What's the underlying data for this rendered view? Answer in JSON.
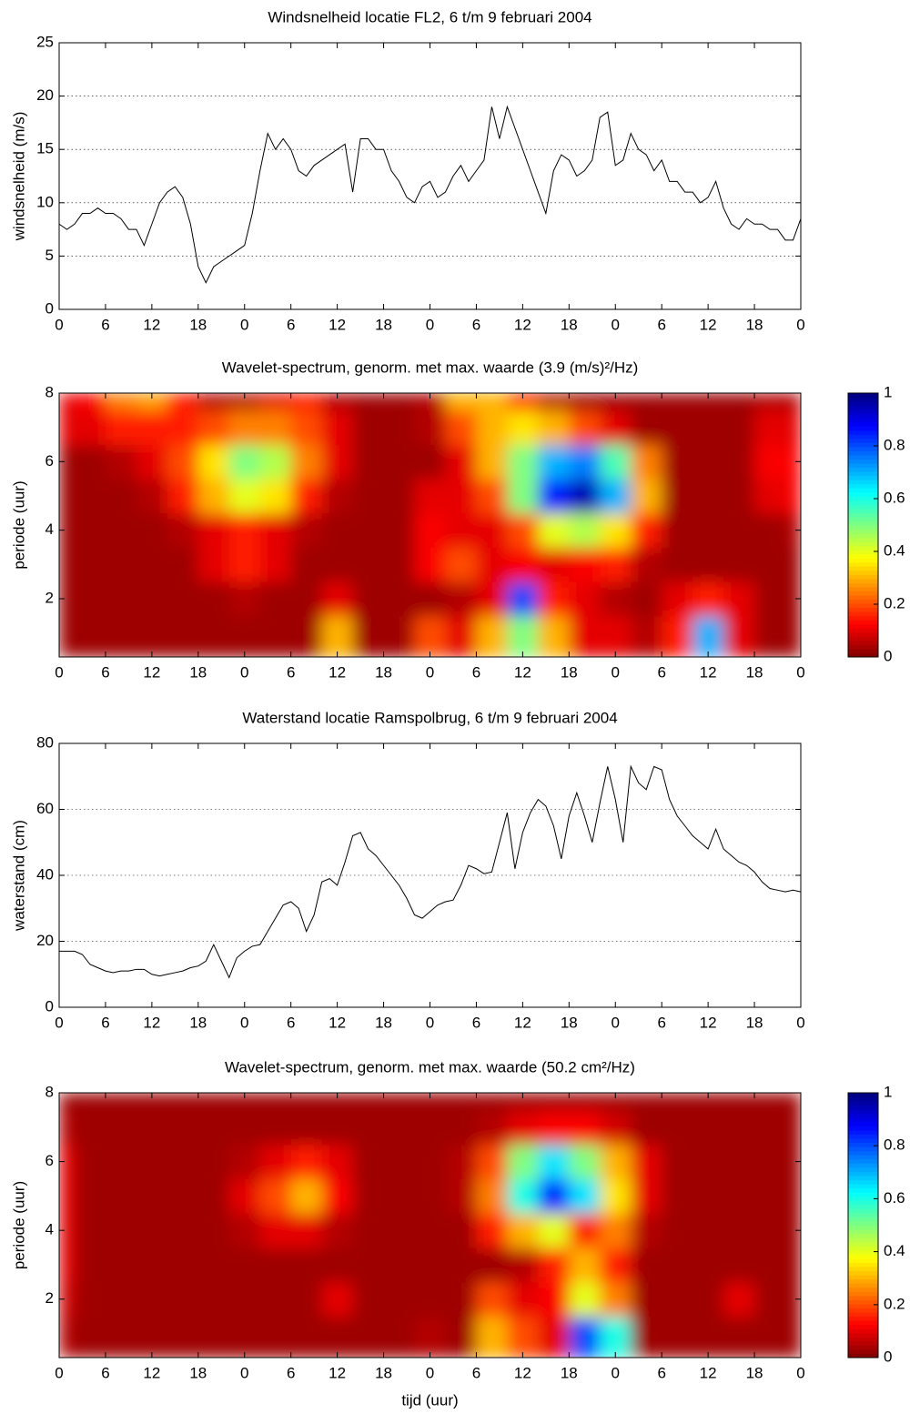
{
  "chart_data": [
    {
      "type": "line",
      "title": "Windsnelheid locatie FL2, 6 t/m 9 februari 2004",
      "ylabel": "windsnelheid (m/s)",
      "x": [
        0,
        1,
        2,
        3,
        4,
        5,
        6,
        7,
        8,
        9,
        10,
        11,
        12,
        13,
        14,
        15,
        16,
        17,
        18,
        19,
        20,
        21,
        22,
        23,
        24,
        25,
        26,
        27,
        28,
        29,
        30,
        31,
        32,
        33,
        34,
        35,
        36,
        37,
        38,
        39,
        40,
        41,
        42,
        43,
        44,
        45,
        46,
        47,
        48,
        49,
        50,
        51,
        52,
        53,
        54,
        55,
        56,
        57,
        58,
        59,
        60,
        61,
        62,
        63,
        64,
        65,
        66,
        67,
        68,
        69,
        70,
        71,
        72,
        73,
        74,
        75,
        76,
        77,
        78,
        79,
        80,
        81,
        82,
        83,
        84,
        85,
        86,
        87,
        88,
        89,
        90,
        91,
        92,
        93,
        94,
        95,
        96
      ],
      "series": [
        {
          "color": "#000000",
          "values": [
            8,
            7.5,
            8,
            9,
            9,
            9.5,
            9,
            9,
            8.5,
            7.5,
            7.5,
            6,
            8,
            10,
            11,
            11.5,
            10.5,
            8,
            4,
            2.5,
            4,
            4.5,
            5,
            5.5,
            6,
            9,
            13,
            16.5,
            15,
            16,
            15,
            13,
            12.5,
            13.5,
            14,
            14.5,
            15,
            15.5,
            11,
            16,
            16,
            15,
            15,
            13,
            12,
            10.5,
            10,
            11.5,
            12,
            10.5,
            11,
            12.5,
            13.5,
            12,
            13,
            14,
            19,
            16,
            19,
            17,
            15,
            13,
            11,
            9,
            13,
            14.5,
            14,
            12.5,
            13,
            14,
            18,
            18.5,
            13.5,
            14,
            16.5,
            15,
            14.5,
            13,
            14,
            12,
            12,
            11,
            11,
            10,
            10.5,
            12,
            9.5,
            8,
            7.5,
            8.5,
            8,
            8,
            7.5,
            7.5,
            6.5,
            6.5,
            8.5
          ]
        }
      ],
      "xlim": [
        0,
        96
      ],
      "xticks": [
        0,
        6,
        12,
        18,
        {
          "value": 24,
          "label": "0"
        },
        {
          "value": 30,
          "label": "6"
        },
        {
          "value": 36,
          "label": "12"
        },
        {
          "value": 42,
          "label": "18"
        },
        {
          "value": 48,
          "label": "0"
        },
        {
          "value": 54,
          "label": "6"
        },
        {
          "value": 60,
          "label": "12"
        },
        {
          "value": 66,
          "label": "18"
        },
        {
          "value": 72,
          "label": "0"
        },
        {
          "value": 78,
          "label": "6"
        },
        {
          "value": 84,
          "label": "12"
        },
        {
          "value": 90,
          "label": "18"
        },
        {
          "value": 96,
          "label": "0"
        }
      ],
      "ylim": [
        0,
        25
      ],
      "yticks": [
        0,
        5,
        10,
        15,
        20,
        25
      ],
      "grid": true
    },
    {
      "type": "contour",
      "title": "Wavelet-spectrum, genorm. met max. waarde (3.9 (m/s)²/Hz)",
      "ylabel": "periode (uur)",
      "colormap": "jet-reversed",
      "x": [
        0,
        4,
        8,
        12,
        16,
        20,
        24,
        28,
        32,
        36,
        40,
        44,
        48,
        52,
        56,
        60,
        64,
        68,
        72,
        76,
        80,
        84,
        88,
        92,
        96
      ],
      "y": [
        1,
        2,
        3,
        4,
        5,
        6,
        7,
        8
      ],
      "z": [
        [
          0.03,
          0.03,
          0.03,
          0.03,
          0.03,
          0.03,
          0.03,
          0.03,
          0.03,
          0.3,
          0.03,
          0.03,
          0.2,
          0.1,
          0.3,
          0.5,
          0.3,
          0.1,
          0.1,
          0.05,
          0.15,
          0.7,
          0.1,
          0.03,
          0.03
        ],
        [
          0.03,
          0.03,
          0.03,
          0.03,
          0.03,
          0.03,
          0.05,
          0.03,
          0.03,
          0.1,
          0.03,
          0.03,
          0.03,
          0.05,
          0.1,
          0.8,
          0.15,
          0.1,
          0.05,
          0.03,
          0.1,
          0.15,
          0.1,
          0.03,
          0.03
        ],
        [
          0.03,
          0.03,
          0.03,
          0.03,
          0.03,
          0.1,
          0.15,
          0.1,
          0.03,
          0.03,
          0.03,
          0.03,
          0.12,
          0.2,
          0.1,
          0.12,
          0.1,
          0.12,
          0.15,
          0.05,
          0.03,
          0.03,
          0.03,
          0.03,
          0.03
        ],
        [
          0.03,
          0.03,
          0.03,
          0.03,
          0.05,
          0.1,
          0.15,
          0.1,
          0.05,
          0.03,
          0.03,
          0.03,
          0.12,
          0.1,
          0.1,
          0.2,
          0.4,
          0.45,
          0.35,
          0.15,
          0.03,
          0.03,
          0.03,
          0.03,
          0.05
        ],
        [
          0.03,
          0.03,
          0.03,
          0.05,
          0.15,
          0.3,
          0.4,
          0.35,
          0.15,
          0.05,
          0.03,
          0.03,
          0.1,
          0.1,
          0.2,
          0.5,
          0.85,
          0.95,
          0.7,
          0.3,
          0.03,
          0.03,
          0.03,
          0.1,
          0.12
        ],
        [
          0.03,
          0.03,
          0.05,
          0.1,
          0.2,
          0.35,
          0.5,
          0.45,
          0.25,
          0.1,
          0.03,
          0.03,
          0.03,
          0.1,
          0.3,
          0.5,
          0.7,
          0.75,
          0.55,
          0.25,
          0.03,
          0.03,
          0.03,
          0.12,
          0.12
        ],
        [
          0.1,
          0.1,
          0.15,
          0.15,
          0.15,
          0.2,
          0.25,
          0.25,
          0.2,
          0.1,
          0.03,
          0.03,
          0.05,
          0.2,
          0.3,
          0.35,
          0.3,
          0.2,
          0.1,
          0.03,
          0.03,
          0.03,
          0.03,
          0.1,
          0.1
        ],
        [
          0.1,
          0.12,
          0.25,
          0.28,
          0.15,
          0.05,
          0.05,
          0.1,
          0.15,
          0.05,
          0.03,
          0.03,
          0.05,
          0.3,
          0.3,
          0.15,
          0.05,
          0.03,
          0.03,
          0.03,
          0.03,
          0.03,
          0.03,
          0.05,
          0.05
        ]
      ],
      "xlim": [
        0,
        96
      ],
      "xticks": [
        0,
        6,
        12,
        18,
        {
          "value": 24,
          "label": "0"
        },
        {
          "value": 30,
          "label": "6"
        },
        {
          "value": 36,
          "label": "12"
        },
        {
          "value": 42,
          "label": "18"
        },
        {
          "value": 48,
          "label": "0"
        },
        {
          "value": 54,
          "label": "6"
        },
        {
          "value": 60,
          "label": "12"
        },
        {
          "value": 66,
          "label": "18"
        },
        {
          "value": 72,
          "label": "0"
        },
        {
          "value": 78,
          "label": "6"
        },
        {
          "value": 84,
          "label": "12"
        },
        {
          "value": 90,
          "label": "18"
        },
        {
          "value": 96,
          "label": "0"
        }
      ],
      "ylim": [
        0.3,
        8
      ],
      "yticks": [
        2,
        4,
        6,
        8
      ],
      "clim": [
        0,
        1
      ],
      "cticks": [
        0,
        0.2,
        0.4,
        0.6,
        0.8,
        1
      ]
    },
    {
      "type": "line",
      "title": "Waterstand locatie Ramspolbrug, 6 t/m 9 februari 2004",
      "ylabel": "waterstand (cm)",
      "x": [
        0,
        1,
        2,
        3,
        4,
        5,
        6,
        7,
        8,
        9,
        10,
        11,
        12,
        13,
        14,
        15,
        16,
        17,
        18,
        19,
        20,
        21,
        22,
        23,
        24,
        25,
        26,
        27,
        28,
        29,
        30,
        31,
        32,
        33,
        34,
        35,
        36,
        37,
        38,
        39,
        40,
        41,
        42,
        43,
        44,
        45,
        46,
        47,
        48,
        49,
        50,
        51,
        52,
        53,
        54,
        55,
        56,
        57,
        58,
        59,
        60,
        61,
        62,
        63,
        64,
        65,
        66,
        67,
        68,
        69,
        70,
        71,
        72,
        73,
        74,
        75,
        76,
        77,
        78,
        79,
        80,
        81,
        82,
        83,
        84,
        85,
        86,
        87,
        88,
        89,
        90,
        91,
        92,
        93,
        94,
        95,
        96
      ],
      "series": [
        {
          "color": "#000000",
          "values": [
            17,
            17,
            17,
            16,
            13,
            12,
            11,
            10.5,
            11,
            11,
            11.5,
            11.5,
            10,
            9.5,
            10,
            10.5,
            11,
            12,
            12.5,
            14,
            19,
            14,
            9,
            15,
            17,
            18.5,
            19,
            23,
            27,
            31,
            32,
            30,
            23,
            28,
            38,
            39,
            37,
            44,
            52,
            53,
            48,
            46,
            43,
            40,
            37,
            33,
            28,
            27,
            29,
            31,
            32,
            32.5,
            37,
            43,
            42,
            40.5,
            41,
            50,
            59,
            42,
            53,
            59,
            63,
            61,
            55,
            45,
            58,
            65,
            58,
            50,
            62,
            73,
            63,
            50,
            73,
            68,
            66,
            73,
            72,
            63,
            58,
            55,
            52,
            50,
            48,
            54,
            48,
            46,
            44,
            43,
            41,
            38,
            36,
            35.5,
            35,
            35.5,
            35
          ]
        }
      ],
      "xlim": [
        0,
        96
      ],
      "xticks": [
        0,
        6,
        12,
        18,
        {
          "value": 24,
          "label": "0"
        },
        {
          "value": 30,
          "label": "6"
        },
        {
          "value": 36,
          "label": "12"
        },
        {
          "value": 42,
          "label": "18"
        },
        {
          "value": 48,
          "label": "0"
        },
        {
          "value": 54,
          "label": "6"
        },
        {
          "value": 60,
          "label": "12"
        },
        {
          "value": 66,
          "label": "18"
        },
        {
          "value": 72,
          "label": "0"
        },
        {
          "value": 78,
          "label": "6"
        },
        {
          "value": 84,
          "label": "12"
        },
        {
          "value": 90,
          "label": "18"
        },
        {
          "value": 96,
          "label": "0"
        }
      ],
      "ylim": [
        0,
        80
      ],
      "yticks": [
        0,
        20,
        40,
        60,
        80
      ],
      "grid": true
    },
    {
      "type": "contour",
      "title": "Wavelet-spectrum, genorm. met max. waarde (50.2 cm²/Hz)",
      "ylabel": "periode (uur)",
      "xlabel": "tijd (uur)",
      "colormap": "jet-reversed",
      "x": [
        0,
        4,
        8,
        12,
        16,
        20,
        24,
        28,
        32,
        36,
        40,
        44,
        48,
        52,
        56,
        60,
        64,
        68,
        72,
        76,
        80,
        84,
        88,
        92,
        96
      ],
      "y": [
        1,
        2,
        3,
        4,
        5,
        6,
        7,
        8
      ],
      "z": [
        [
          0.05,
          0.03,
          0.03,
          0.03,
          0.03,
          0.03,
          0.03,
          0.03,
          0.03,
          0.03,
          0.03,
          0.03,
          0.05,
          0.03,
          0.3,
          0.2,
          0.1,
          0.8,
          0.6,
          0.03,
          0.03,
          0.03,
          0.03,
          0.03,
          0.03
        ],
        [
          0.08,
          0.03,
          0.03,
          0.03,
          0.03,
          0.03,
          0.03,
          0.03,
          0.03,
          0.1,
          0.03,
          0.03,
          0.03,
          0.03,
          0.2,
          0.1,
          0.12,
          0.4,
          0.25,
          0.03,
          0.03,
          0.03,
          0.1,
          0.03,
          0.03
        ],
        [
          0.1,
          0.03,
          0.03,
          0.03,
          0.03,
          0.03,
          0.03,
          0.03,
          0.03,
          0.03,
          0.03,
          0.03,
          0.03,
          0.03,
          0.03,
          0.05,
          0.15,
          0.3,
          0.15,
          0.03,
          0.03,
          0.03,
          0.03,
          0.03,
          0.03
        ],
        [
          0.1,
          0.03,
          0.03,
          0.03,
          0.03,
          0.03,
          0.05,
          0.1,
          0.1,
          0.05,
          0.03,
          0.03,
          0.03,
          0.03,
          0.15,
          0.3,
          0.4,
          0.15,
          0.25,
          0.05,
          0.03,
          0.03,
          0.03,
          0.03,
          0.03
        ],
        [
          0.1,
          0.03,
          0.03,
          0.03,
          0.03,
          0.03,
          0.1,
          0.2,
          0.3,
          0.12,
          0.03,
          0.03,
          0.03,
          0.05,
          0.25,
          0.6,
          0.85,
          0.65,
          0.35,
          0.1,
          0.03,
          0.03,
          0.03,
          0.03,
          0.03
        ],
        [
          0.1,
          0.03,
          0.03,
          0.03,
          0.03,
          0.03,
          0.05,
          0.1,
          0.15,
          0.1,
          0.03,
          0.03,
          0.03,
          0.05,
          0.2,
          0.5,
          0.65,
          0.5,
          0.3,
          0.1,
          0.03,
          0.03,
          0.03,
          0.03,
          0.03
        ],
        [
          0.05,
          0.03,
          0.03,
          0.03,
          0.03,
          0.03,
          0.03,
          0.03,
          0.03,
          0.03,
          0.03,
          0.03,
          0.03,
          0.03,
          0.05,
          0.1,
          0.12,
          0.12,
          0.08,
          0.03,
          0.03,
          0.03,
          0.03,
          0.03,
          0.03
        ],
        [
          0.03,
          0.03,
          0.03,
          0.03,
          0.03,
          0.03,
          0.03,
          0.03,
          0.03,
          0.03,
          0.03,
          0.03,
          0.03,
          0.03,
          0.03,
          0.03,
          0.03,
          0.03,
          0.03,
          0.03,
          0.03,
          0.03,
          0.03,
          0.03,
          0.03
        ]
      ],
      "xlim": [
        0,
        96
      ],
      "xticks": [
        0,
        6,
        12,
        18,
        {
          "value": 24,
          "label": "0"
        },
        {
          "value": 30,
          "label": "6"
        },
        {
          "value": 36,
          "label": "12"
        },
        {
          "value": 42,
          "label": "18"
        },
        {
          "value": 48,
          "label": "0"
        },
        {
          "value": 54,
          "label": "6"
        },
        {
          "value": 60,
          "label": "12"
        },
        {
          "value": 66,
          "label": "18"
        },
        {
          "value": 72,
          "label": "0"
        },
        {
          "value": 78,
          "label": "6"
        },
        {
          "value": 84,
          "label": "12"
        },
        {
          "value": 90,
          "label": "18"
        },
        {
          "value": 96,
          "label": "0"
        }
      ],
      "ylim": [
        0.3,
        8
      ],
      "yticks": [
        2,
        4,
        6,
        8
      ],
      "clim": [
        0,
        1
      ],
      "cticks": [
        0,
        0.2,
        0.4,
        0.6,
        0.8,
        1
      ]
    }
  ]
}
